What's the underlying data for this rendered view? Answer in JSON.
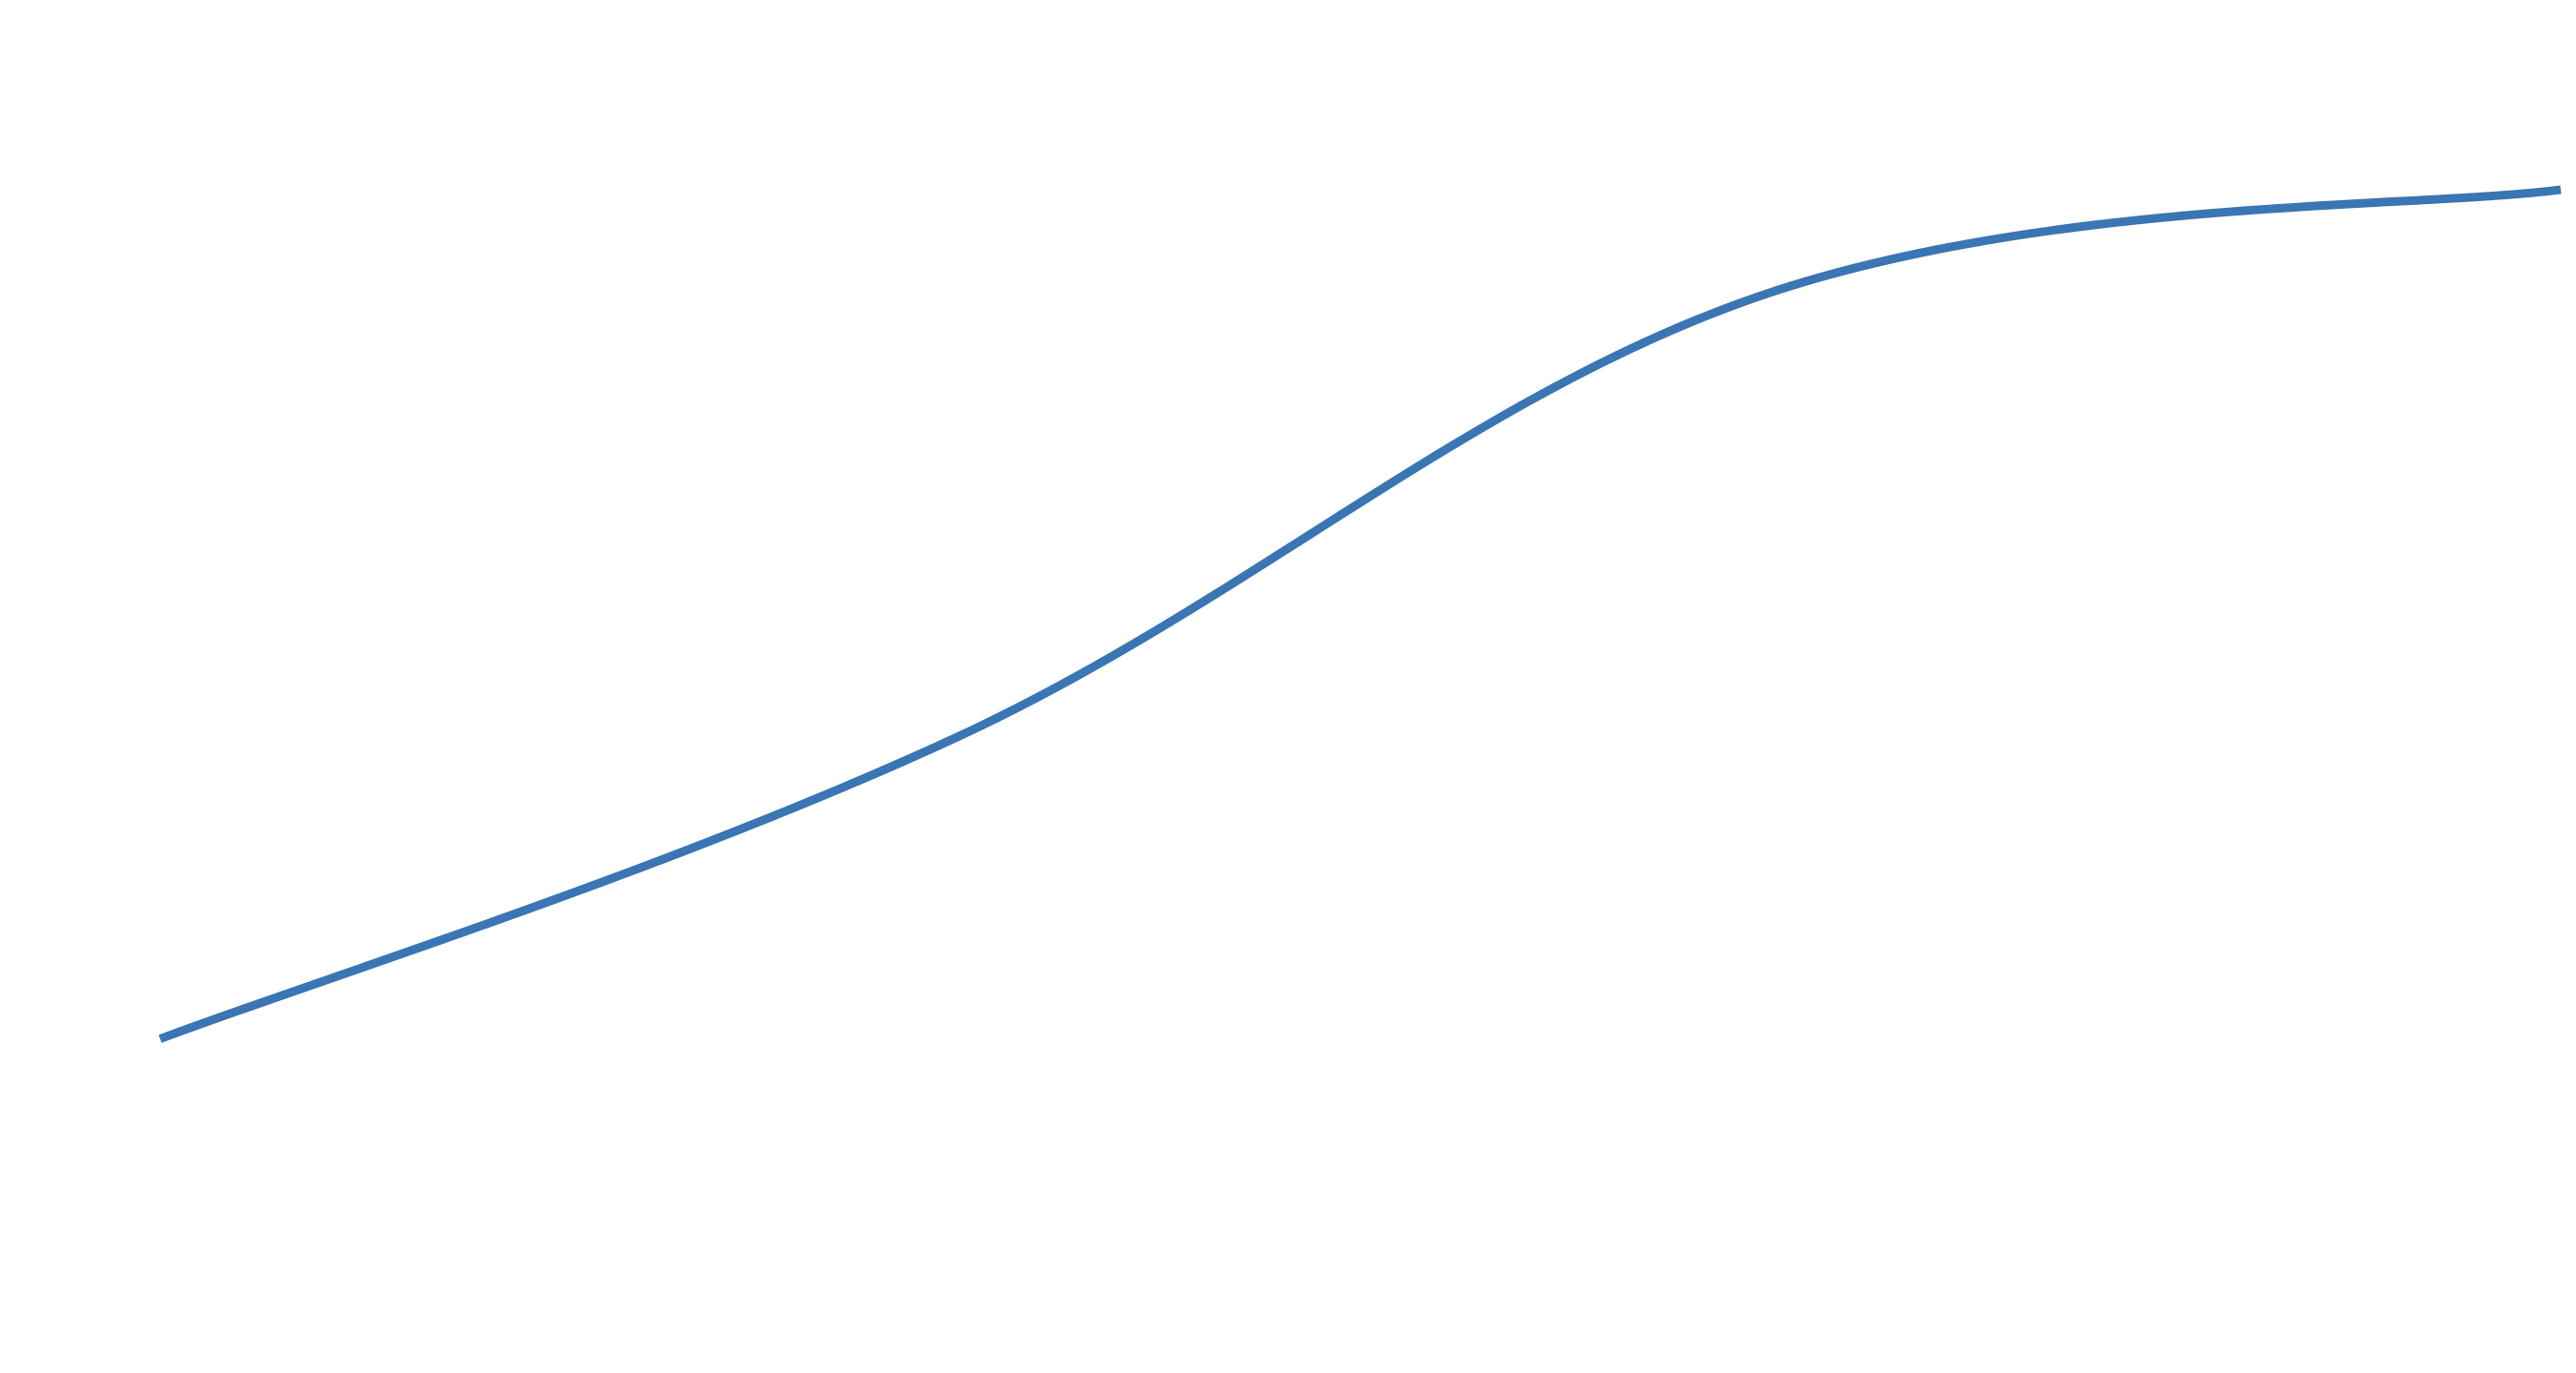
{
  "colors": {
    "background": "#ffffff",
    "series_line": "#3a75b4"
  },
  "chart_data": {
    "type": "line",
    "title": "",
    "xlabel": "",
    "ylabel": "",
    "grid": false,
    "legend": "none",
    "x": [
      0,
      1,
      2,
      3
    ],
    "xlim": [
      0,
      3
    ],
    "ylim": [
      0,
      1.7
    ],
    "smooth": true,
    "series": [
      {
        "values": [
          0.34,
          0.74,
          1.32,
          1.46
        ]
      }
    ]
  }
}
